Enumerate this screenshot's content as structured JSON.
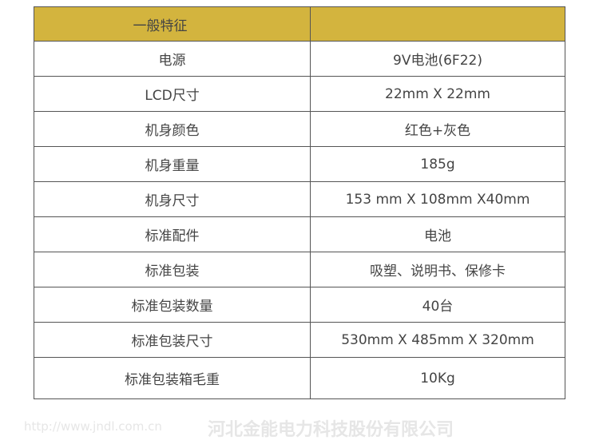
{
  "watermark": {
    "company": "河北金能电力科技股份有限公司",
    "url": "http://www.jndl.com.cn"
  },
  "colors": {
    "header_bg": "#d3b43e",
    "border": "#555555"
  },
  "table": {
    "header": [
      "一般特征",
      ""
    ],
    "rows": [
      [
        "电源",
        "9V电池(6F22)"
      ],
      [
        "LCD尺寸",
        "22mm X 22mm"
      ],
      [
        "机身颜色",
        "红色+灰色"
      ],
      [
        "机身重量",
        "185g"
      ],
      [
        "机身尺寸",
        "153 mm X 108mm X40mm"
      ],
      [
        "标准配件",
        "电池"
      ],
      [
        "标准包装",
        "吸塑、说明书、保修卡"
      ],
      [
        "标准包装数量",
        "40台"
      ],
      [
        "标准包装尺寸",
        "530mm X 485mm X 320mm"
      ],
      [
        "标准包装箱毛重",
        "10Kg"
      ]
    ]
  }
}
